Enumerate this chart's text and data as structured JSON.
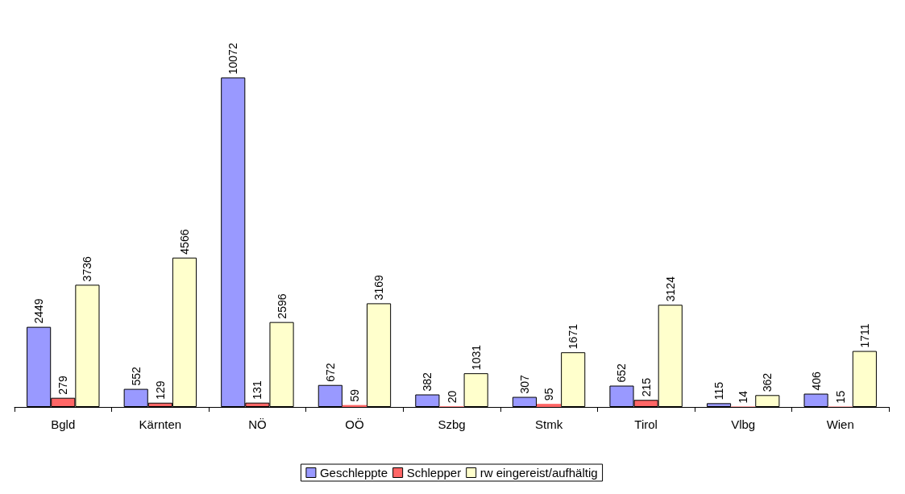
{
  "chart_data": {
    "type": "bar",
    "categories": [
      "Bgld",
      "Kärnten",
      "NÖ",
      "OÖ",
      "Szbg",
      "Stmk",
      "Tirol",
      "Vlbg",
      "Wien"
    ],
    "series": [
      {
        "name": "Geschleppte",
        "color": "#9999ff",
        "values": [
          2449,
          552,
          10072,
          672,
          382,
          307,
          652,
          115,
          406
        ]
      },
      {
        "name": "Schlepper",
        "color": "#ff6666",
        "values": [
          279,
          129,
          131,
          59,
          20,
          95,
          215,
          14,
          15
        ]
      },
      {
        "name": "rw eingereist/aufhältig",
        "color": "#ffffcc",
        "values": [
          3736,
          4566,
          2596,
          3169,
          1031,
          1671,
          3124,
          362,
          1711
        ]
      }
    ],
    "data_labels": true,
    "legend": "bottom"
  }
}
